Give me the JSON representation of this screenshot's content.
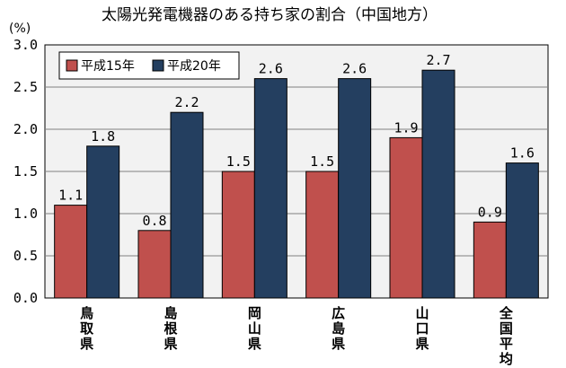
{
  "chart_data": {
    "type": "bar",
    "title": "太陽光発電機器のある持ち家の割合（中国地方）",
    "unit_label": "(%)",
    "categories": [
      "鳥取県",
      "島根県",
      "岡山県",
      "広島県",
      "山口県",
      "全国平均"
    ],
    "series": [
      {
        "name": "平成15年",
        "values": [
          1.1,
          0.8,
          1.5,
          1.5,
          1.9,
          0.9
        ],
        "labels": [
          "1.1",
          "0.8",
          "1.5",
          "1.5",
          "1.9",
          "0.9"
        ],
        "color": "#C0504D"
      },
      {
        "name": "平成20年",
        "values": [
          1.8,
          2.2,
          2.6,
          2.6,
          2.7,
          1.6
        ],
        "labels": [
          "1.8",
          "2.2",
          "2.6",
          "2.6",
          "2.7",
          "1.6"
        ],
        "color": "#243F60"
      }
    ],
    "ylim": [
      0,
      3.0
    ],
    "yticks": [
      "0.0",
      "0.5",
      "1.0",
      "1.5",
      "2.0",
      "2.5",
      "3.0"
    ],
    "grid": true,
    "legend_position": "top-left",
    "plot_background": "#F2F2F2"
  }
}
